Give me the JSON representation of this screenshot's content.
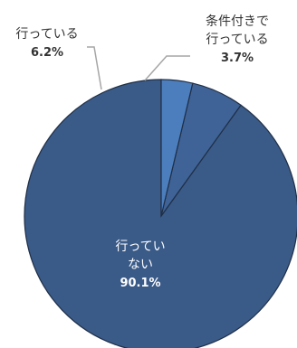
{
  "chart_data": {
    "type": "pie",
    "slices": [
      {
        "label_lines": [
          "行ってい",
          "ない"
        ],
        "value_label": "90.1%",
        "value": 90.1,
        "color": "#3a5a88"
      },
      {
        "label_lines": [
          "行っている"
        ],
        "value_label": "6.2%",
        "value": 6.2,
        "color": "#3f6396"
      },
      {
        "label_lines": [
          "条件付きで",
          "行っている"
        ],
        "value_label": "3.7%",
        "value": 3.7,
        "color": "#4c7ebd"
      }
    ],
    "start_angle_deg": 0,
    "direction": "counterclockwise",
    "edge_color": "#1f2f47",
    "leader_color": "#a6a6a6",
    "legend": "none"
  }
}
